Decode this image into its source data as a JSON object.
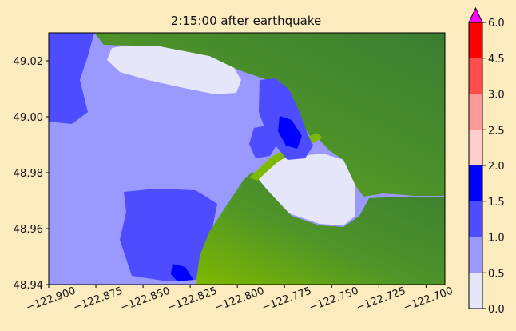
{
  "chart_data": {
    "type": "heatmap",
    "title": "2:15:00 after earthquake",
    "xlabel": "",
    "ylabel": "",
    "x_ticks": [
      "−122.900",
      "−122.875",
      "−122.850",
      "−122.825",
      "−122.800",
      "−122.775",
      "−122.750",
      "−122.725",
      "−122.700"
    ],
    "y_ticks": [
      "49.02",
      "49.00",
      "48.98",
      "48.96",
      "48.94"
    ],
    "xlim": [
      -122.9,
      -122.69
    ],
    "ylim": [
      48.94,
      49.03
    ],
    "colorbar": {
      "levels": [
        0.0,
        0.5,
        1.0,
        1.5,
        2.0,
        2.5,
        3.0,
        4.5,
        6.0
      ],
      "labels": [
        "0.0",
        "0.5",
        "1.0",
        "1.5",
        "2.0",
        "2.5",
        "3.0",
        "4.5",
        "6.0"
      ],
      "colors": [
        "#e6e6fa",
        "#9999ff",
        "#4d4dff",
        "#0000ff",
        "#ffcccc",
        "#ff9999",
        "#ff4d4d",
        "#ff0000"
      ],
      "extend_color": "#ff00ff"
    },
    "land_colors": {
      "low": "#7fb800",
      "mid": "#4e9428",
      "high": "#3a7d32"
    },
    "grid": false
  }
}
